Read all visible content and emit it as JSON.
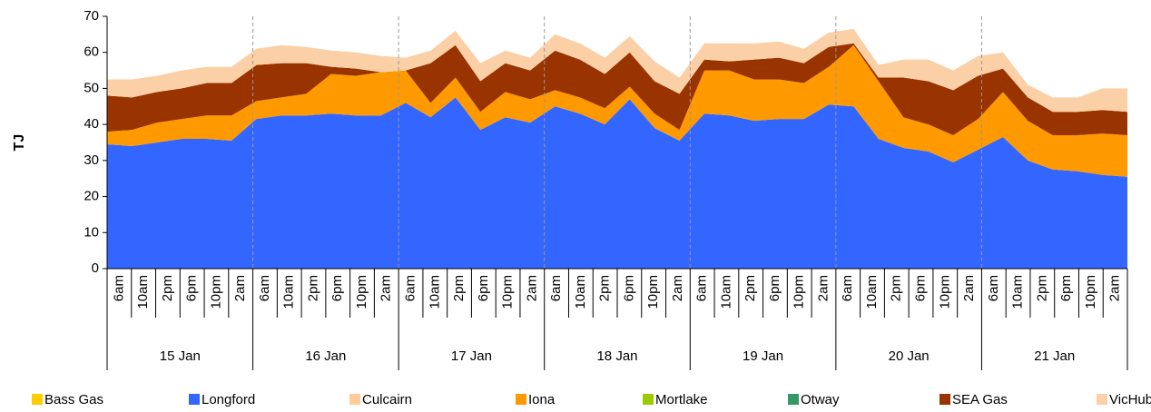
{
  "chart_data": {
    "type": "stacked_area",
    "y_label": "TJ",
    "categories": [
      "6am",
      "10am",
      "2pm",
      "6pm",
      "10pm",
      "2am",
      "6am",
      "10am",
      "2pm",
      "6pm",
      "10pm",
      "2am",
      "6am",
      "10am",
      "2pm",
      "6pm",
      "10pm",
      "2am",
      "6am",
      "10am",
      "2pm",
      "6pm",
      "10pm",
      "2am",
      "6am",
      "10am",
      "2pm",
      "6pm",
      "10pm",
      "2am",
      "6am",
      "10am",
      "2pm",
      "6pm",
      "10pm",
      "2am",
      "6am",
      "10am",
      "2pm",
      "6pm",
      "10pm",
      "2am"
    ],
    "groups": [
      "15 Jan",
      "16 Jan",
      "17 Jan",
      "18 Jan",
      "19 Jan",
      "20 Jan",
      "21 Jan"
    ],
    "ylim": [
      0,
      70
    ],
    "yticks": [
      0,
      10,
      20,
      30,
      40,
      50,
      60,
      70
    ],
    "grid": false,
    "series": [
      {
        "name": "Bass Gas",
        "color": "#ffcc00",
        "values": [
          0,
          0,
          0,
          0,
          0,
          0,
          0,
          0,
          0,
          0,
          0,
          0,
          0,
          0,
          0,
          0,
          0,
          0,
          0,
          0,
          0,
          0,
          0,
          0,
          0,
          0,
          0,
          0,
          0,
          0,
          0,
          0,
          0,
          0,
          0,
          0,
          0,
          0,
          0,
          0,
          0,
          0
        ]
      },
      {
        "name": "Longford",
        "color": "#3366ff",
        "values": [
          34.5,
          34,
          35,
          36,
          36,
          35.5,
          41.5,
          42.5,
          42.5,
          43,
          42.5,
          42.5,
          46,
          42,
          47.5,
          38.5,
          42,
          40.5,
          45,
          43,
          40,
          47,
          39,
          35.5,
          43,
          42.5,
          41,
          41.5,
          41.5,
          45.5,
          45,
          36,
          33.5,
          32.5,
          29.5,
          33,
          36.5,
          30,
          27.5,
          27,
          26,
          25.5
        ]
      },
      {
        "name": "Culcairn",
        "color": "#ffcc99",
        "values": [
          0,
          0,
          0,
          0,
          0,
          0,
          0,
          0,
          0,
          0,
          0,
          0,
          0,
          0,
          0,
          0,
          0,
          0,
          0,
          0,
          0,
          0,
          0,
          0,
          0,
          0,
          0,
          0,
          0,
          0,
          0,
          0,
          0,
          0,
          0,
          0,
          0,
          0,
          0,
          0,
          0,
          0
        ]
      },
      {
        "name": "Iona",
        "color": "#ff9900",
        "values": [
          3.5,
          4.5,
          5.5,
          5.5,
          6.5,
          7,
          5,
          5,
          6,
          11,
          11,
          12,
          9,
          4,
          5.5,
          5,
          7,
          6.5,
          4.5,
          4.5,
          4.5,
          3.5,
          4,
          3,
          12,
          12.5,
          11.5,
          11,
          10,
          10.5,
          17,
          16,
          8.5,
          7.5,
          7.5,
          8.5,
          12.5,
          11,
          9.5,
          10,
          11.5,
          11.5
        ]
      },
      {
        "name": "Mortlake",
        "color": "#99cc00",
        "values": [
          0,
          0,
          0,
          0,
          0,
          0,
          0,
          0,
          0,
          0,
          0,
          0,
          0,
          0,
          0,
          0,
          0,
          0,
          0,
          0,
          0,
          0,
          0,
          0,
          0,
          0,
          0,
          0,
          0,
          0,
          0,
          0,
          0,
          0,
          0,
          0,
          0,
          0,
          0,
          0,
          0,
          0
        ]
      },
      {
        "name": "Otway",
        "color": "#339966",
        "values": [
          0,
          0,
          0,
          0,
          0,
          0,
          0,
          0,
          0,
          0,
          0,
          0,
          0,
          0,
          0,
          0,
          0,
          0,
          0,
          0,
          0,
          0,
          0,
          0,
          0,
          0,
          0,
          0,
          0,
          0,
          0,
          0,
          0,
          0,
          0,
          0,
          0,
          0,
          0,
          0,
          0,
          0
        ]
      },
      {
        "name": "SEA Gas",
        "color": "#993300",
        "values": [
          10,
          9,
          8.5,
          8.5,
          9,
          9,
          10,
          9.5,
          8.5,
          2,
          2,
          0,
          0,
          11,
          9,
          8.5,
          8,
          8,
          11,
          10.5,
          9.5,
          9.5,
          9,
          10,
          3,
          2.5,
          5.5,
          6,
          5.5,
          5.5,
          0.5,
          1,
          11,
          12,
          12.5,
          12,
          6.5,
          6.5,
          6.5,
          6.5,
          6.5,
          6.5
        ]
      },
      {
        "name": "VicHub",
        "color": "#fcd0a6",
        "values": [
          4.5,
          5,
          4.5,
          5,
          4.5,
          4.5,
          4.5,
          5,
          4.5,
          4.5,
          4.5,
          4.5,
          3.5,
          3.5,
          4,
          5,
          3.5,
          3.5,
          4.5,
          4.5,
          4.5,
          4.5,
          5.5,
          4.5,
          4.5,
          5,
          4.5,
          4.5,
          4,
          4,
          4,
          3.5,
          5,
          6,
          5.5,
          5.5,
          4.5,
          3.5,
          4,
          4,
          6,
          6.5
        ]
      }
    ]
  }
}
